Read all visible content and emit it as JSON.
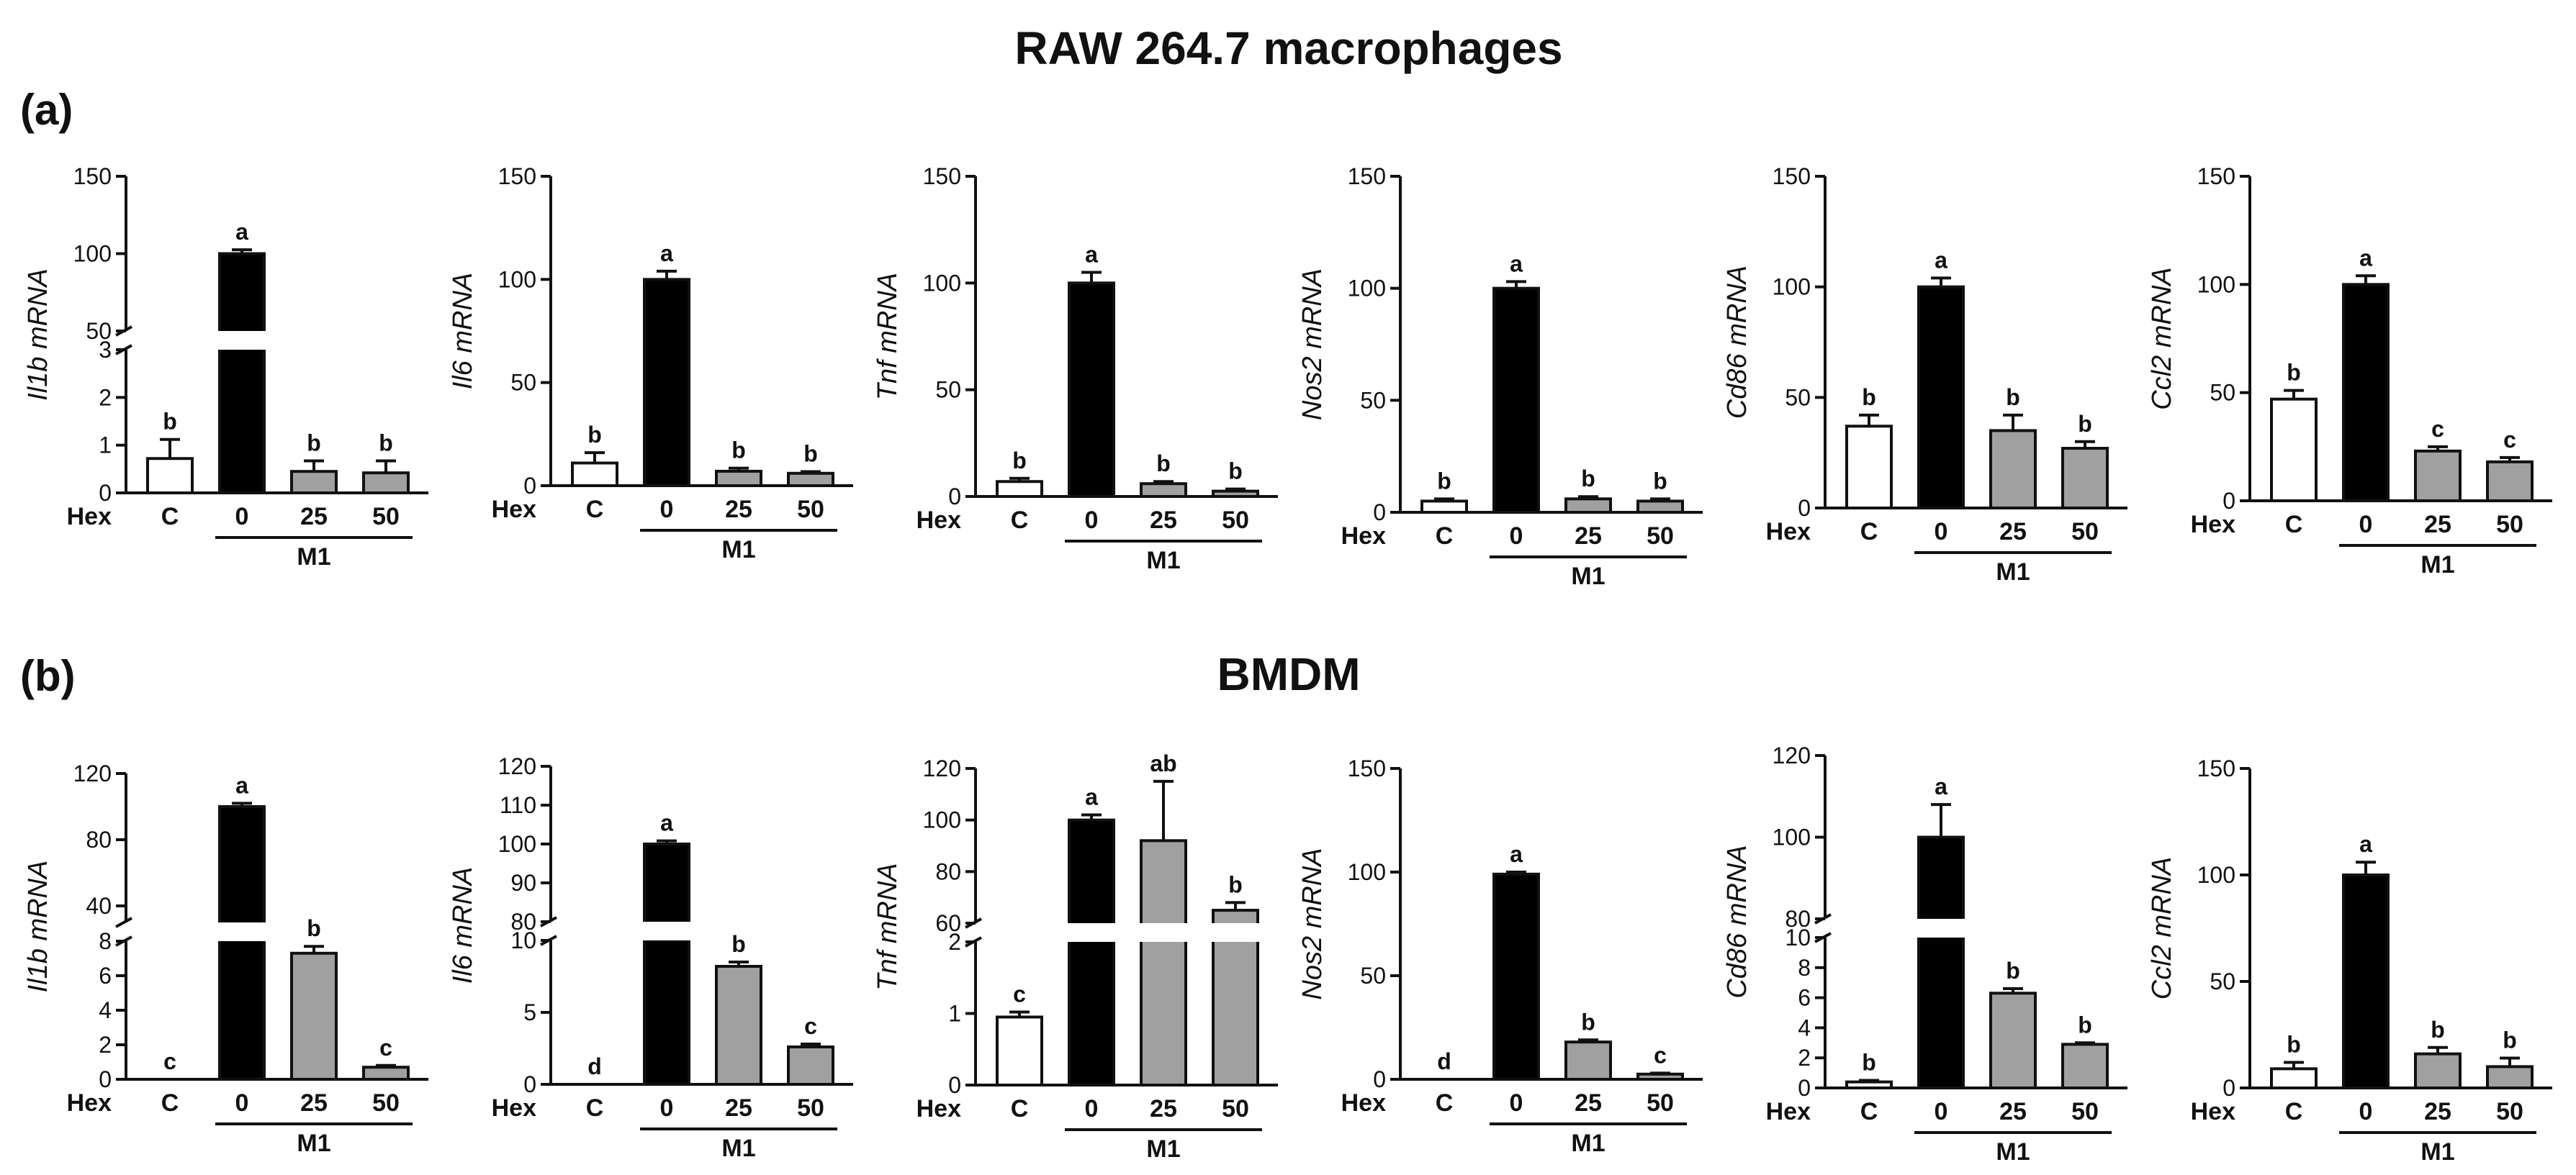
{
  "figure": {
    "title_a": "RAW 264.7 macrophages",
    "title_b": "BMDM",
    "label_a": "(a)",
    "label_b": "(b)",
    "colors": {
      "control": "#ffffff",
      "m1_0": "#000000",
      "m1_hex": "#a0a0a0",
      "axis": "#111111"
    }
  },
  "chart_data": [
    {
      "id": "a-il1b",
      "type": "bar",
      "panel": "a",
      "ylabel": "Il1b mRNA",
      "categories": [
        "C",
        "0",
        "25",
        "50"
      ],
      "x_prefix": "Hex",
      "group_label": "M1",
      "values": [
        0.72,
        100,
        0.45,
        0.42
      ],
      "errors": [
        0.4,
        2.5,
        0.22,
        0.25
      ],
      "letters": [
        "b",
        "a",
        "b",
        "b"
      ],
      "broken_axis": true,
      "lower_ylim": [
        0,
        3
      ],
      "lower_ticks": [
        0,
        1,
        2,
        3
      ],
      "upper_ylim": [
        50,
        150
      ],
      "upper_ticks": [
        50,
        100,
        150
      ]
    },
    {
      "id": "a-il6",
      "type": "bar",
      "panel": "a",
      "ylabel": "Il6 mRNA",
      "categories": [
        "C",
        "0",
        "25",
        "50"
      ],
      "x_prefix": "Hex",
      "group_label": "M1",
      "values": [
        11,
        100,
        7,
        6
      ],
      "errors": [
        5,
        4,
        1.5,
        0.8
      ],
      "letters": [
        "b",
        "a",
        "b",
        "b"
      ],
      "ylim": [
        0,
        150
      ],
      "ticks": [
        0,
        50,
        100,
        150
      ]
    },
    {
      "id": "a-tnf",
      "type": "bar",
      "panel": "a",
      "ylabel": "Tnf mRNA",
      "categories": [
        "C",
        "0",
        "25",
        "50"
      ],
      "x_prefix": "Hex",
      "group_label": "M1",
      "values": [
        7,
        100,
        6,
        2.5
      ],
      "errors": [
        1.5,
        5,
        1,
        1
      ],
      "letters": [
        "b",
        "a",
        "b",
        "b"
      ],
      "ylim": [
        0,
        150
      ],
      "ticks": [
        0,
        50,
        100,
        150
      ]
    },
    {
      "id": "a-nos2",
      "type": "bar",
      "panel": "a",
      "ylabel": "Nos2 mRNA",
      "categories": [
        "C",
        "0",
        "25",
        "50"
      ],
      "x_prefix": "Hex",
      "group_label": "M1",
      "values": [
        5,
        100,
        6,
        5
      ],
      "errors": [
        1,
        3,
        1,
        1
      ],
      "letters": [
        "b",
        "a",
        "b",
        "b"
      ],
      "ylim": [
        0,
        150
      ],
      "ticks": [
        0,
        50,
        100,
        150
      ]
    },
    {
      "id": "a-cd86",
      "type": "bar",
      "panel": "a",
      "ylabel": "Cd86 mRNA",
      "categories": [
        "C",
        "0",
        "25",
        "50"
      ],
      "x_prefix": "Hex",
      "group_label": "M1",
      "values": [
        37,
        100,
        35,
        27
      ],
      "errors": [
        5,
        4,
        7,
        3
      ],
      "letters": [
        "b",
        "a",
        "b",
        "b"
      ],
      "ylim": [
        0,
        150
      ],
      "ticks": [
        0,
        50,
        100,
        150
      ]
    },
    {
      "id": "a-ccl2",
      "type": "bar",
      "panel": "a",
      "ylabel": "Ccl2 mRNA",
      "categories": [
        "C",
        "0",
        "25",
        "50"
      ],
      "x_prefix": "Hex",
      "group_label": "M1",
      "values": [
        47,
        100,
        23,
        18
      ],
      "errors": [
        4,
        4,
        2,
        2
      ],
      "letters": [
        "b",
        "a",
        "c",
        "c"
      ],
      "ylim": [
        0,
        150
      ],
      "ticks": [
        0,
        50,
        100,
        150
      ]
    },
    {
      "id": "b-il1b",
      "type": "bar",
      "panel": "b",
      "ylabel": "Il1b mRNA",
      "categories": [
        "C",
        "0",
        "25",
        "50"
      ],
      "x_prefix": "Hex",
      "group_label": "M1",
      "values": [
        0,
        100,
        7.3,
        0.7
      ],
      "errors": [
        0,
        2,
        0.4,
        0.1
      ],
      "letters": [
        "c",
        "a",
        "b",
        "c"
      ],
      "broken_axis": true,
      "lower_ylim": [
        0,
        8
      ],
      "lower_ticks": [
        0,
        2,
        4,
        6,
        8
      ],
      "upper_ylim": [
        30,
        120
      ],
      "upper_ticks": [
        40,
        80,
        120
      ]
    },
    {
      "id": "b-il6",
      "type": "bar",
      "panel": "b",
      "ylabel": "Il6 mRNA",
      "categories": [
        "C",
        "0",
        "25",
        "50"
      ],
      "x_prefix": "Hex",
      "group_label": "M1",
      "values": [
        0,
        100,
        8.2,
        2.6
      ],
      "errors": [
        0,
        0.8,
        0.3,
        0.2
      ],
      "letters": [
        "d",
        "a",
        "b",
        "c"
      ],
      "broken_axis": true,
      "lower_ylim": [
        0,
        10
      ],
      "lower_ticks": [
        0,
        5,
        10
      ],
      "upper_ylim": [
        80,
        120
      ],
      "upper_ticks": [
        80,
        90,
        100,
        110,
        120
      ]
    },
    {
      "id": "b-tnf",
      "type": "bar",
      "panel": "b",
      "ylabel": "Tnf mRNA",
      "categories": [
        "C",
        "0",
        "25",
        "50"
      ],
      "x_prefix": "Hex",
      "group_label": "M1",
      "values": [
        0.95,
        100,
        92,
        65
      ],
      "errors": [
        0.07,
        2,
        23,
        3
      ],
      "letters": [
        "c",
        "a",
        "ab",
        "b"
      ],
      "broken_axis": true,
      "lower_ylim": [
        0,
        2
      ],
      "lower_ticks": [
        0,
        1,
        2
      ],
      "upper_ylim": [
        60,
        120
      ],
      "upper_ticks": [
        60,
        80,
        100,
        120
      ]
    },
    {
      "id": "b-nos2",
      "type": "bar",
      "panel": "b",
      "ylabel": "Nos2 mRNA",
      "categories": [
        "C",
        "0",
        "25",
        "50"
      ],
      "x_prefix": "Hex",
      "group_label": "M1",
      "values": [
        0,
        99,
        18,
        2.5
      ],
      "errors": [
        0,
        1,
        1,
        0.5
      ],
      "letters": [
        "d",
        "a",
        "b",
        "c"
      ],
      "ylim": [
        0,
        150
      ],
      "ticks": [
        0,
        50,
        100,
        150
      ]
    },
    {
      "id": "b-cd86",
      "type": "bar",
      "panel": "b",
      "ylabel": "Cd86 mRNA",
      "categories": [
        "C",
        "0",
        "25",
        "50"
      ],
      "x_prefix": "Hex",
      "group_label": "M1",
      "values": [
        0.4,
        100,
        6.3,
        2.9
      ],
      "errors": [
        0.1,
        8,
        0.3,
        0.1
      ],
      "letters": [
        "b",
        "a",
        "b",
        "b"
      ],
      "broken_axis": true,
      "lower_ylim": [
        0,
        10
      ],
      "lower_ticks": [
        0,
        2,
        4,
        6,
        8,
        10
      ],
      "upper_ylim": [
        80,
        120
      ],
      "upper_ticks": [
        80,
        100,
        120
      ]
    },
    {
      "id": "b-ccl2",
      "type": "bar",
      "panel": "b",
      "ylabel": "Ccl2 mRNA",
      "categories": [
        "C",
        "0",
        "25",
        "50"
      ],
      "x_prefix": "Hex",
      "group_label": "M1",
      "values": [
        9,
        100,
        16,
        10
      ],
      "errors": [
        3,
        6,
        3,
        4
      ],
      "letters": [
        "b",
        "a",
        "b",
        "b"
      ],
      "ylim": [
        0,
        150
      ],
      "ticks": [
        0,
        50,
        100,
        150
      ]
    }
  ]
}
